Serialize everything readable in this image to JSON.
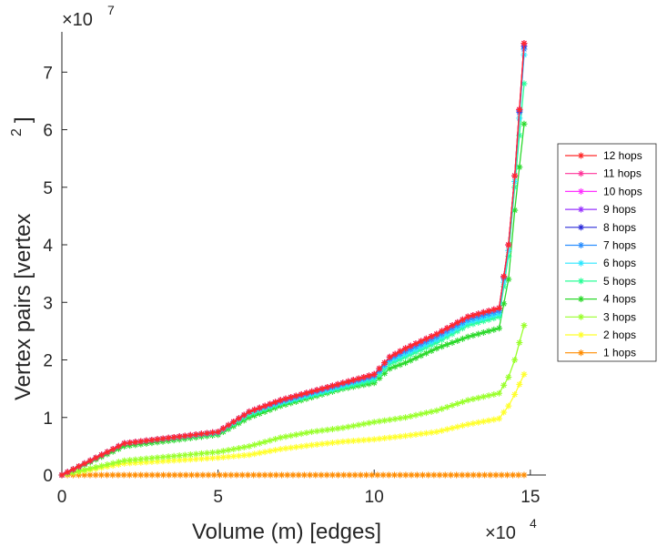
{
  "chart_data": {
    "type": "line",
    "title": "",
    "xlabel": "Volume (m) [edges]",
    "ylabel_main": "Vertex pairs [vertex",
    "ylabel_sup": "2",
    "ylabel_close": "]",
    "x_multiplier": {
      "base": "×10",
      "exp": "4"
    },
    "y_multiplier": {
      "base": "×10",
      "exp": "7"
    },
    "xlim": [
      0,
      15.5
    ],
    "ylim": [
      0,
      7.7
    ],
    "xticks": [
      0,
      5,
      10,
      15
    ],
    "yticks": [
      0,
      1,
      2,
      3,
      4,
      5,
      6,
      7
    ],
    "xticklabels": [
      "0",
      "5",
      "10",
      "15"
    ],
    "yticklabels": [
      "0",
      "1",
      "2",
      "3",
      "4",
      "5",
      "6",
      "7"
    ],
    "legend_location": "right",
    "series": [
      {
        "name": "12 hops",
        "color": "#ff2a2a",
        "points": [
          [
            0,
            0
          ],
          [
            2,
            0.55
          ],
          [
            5,
            0.75
          ],
          [
            6,
            1.1
          ],
          [
            7,
            1.3
          ],
          [
            8,
            1.45
          ],
          [
            9,
            1.6
          ],
          [
            10,
            1.75
          ],
          [
            10.5,
            2.05
          ],
          [
            11,
            2.2
          ],
          [
            12,
            2.45
          ],
          [
            13,
            2.75
          ],
          [
            14,
            2.9
          ],
          [
            14.3,
            4
          ],
          [
            14.5,
            5.2
          ],
          [
            14.8,
            7.5
          ]
        ]
      },
      {
        "name": "11 hops",
        "color": "#ff3399",
        "points": [
          [
            0,
            0
          ],
          [
            2,
            0.55
          ],
          [
            5,
            0.75
          ],
          [
            6,
            1.1
          ],
          [
            7,
            1.3
          ],
          [
            8,
            1.45
          ],
          [
            9,
            1.6
          ],
          [
            10,
            1.75
          ],
          [
            10.5,
            2.05
          ],
          [
            11,
            2.2
          ],
          [
            12,
            2.45
          ],
          [
            13,
            2.75
          ],
          [
            14,
            2.9
          ],
          [
            14.3,
            4
          ],
          [
            14.5,
            5.2
          ],
          [
            14.8,
            7.5
          ]
        ]
      },
      {
        "name": "10 hops",
        "color": "#ff33ff",
        "points": [
          [
            0,
            0
          ],
          [
            2,
            0.55
          ],
          [
            5,
            0.75
          ],
          [
            6,
            1.1
          ],
          [
            7,
            1.3
          ],
          [
            8,
            1.45
          ],
          [
            9,
            1.6
          ],
          [
            10,
            1.75
          ],
          [
            10.5,
            2.05
          ],
          [
            11,
            2.2
          ],
          [
            12,
            2.45
          ],
          [
            13,
            2.75
          ],
          [
            14,
            2.9
          ],
          [
            14.3,
            4
          ],
          [
            14.5,
            5.2
          ],
          [
            14.8,
            7.5
          ]
        ]
      },
      {
        "name": "9 hops",
        "color": "#9933ff",
        "points": [
          [
            0,
            0
          ],
          [
            2,
            0.55
          ],
          [
            5,
            0.75
          ],
          [
            6,
            1.1
          ],
          [
            7,
            1.3
          ],
          [
            8,
            1.45
          ],
          [
            9,
            1.6
          ],
          [
            10,
            1.75
          ],
          [
            10.5,
            2.05
          ],
          [
            11,
            2.2
          ],
          [
            12,
            2.45
          ],
          [
            13,
            2.75
          ],
          [
            14,
            2.9
          ],
          [
            14.3,
            4
          ],
          [
            14.5,
            5.2
          ],
          [
            14.8,
            7.5
          ]
        ]
      },
      {
        "name": "8 hops",
        "color": "#2b2bd9",
        "points": [
          [
            0,
            0
          ],
          [
            2,
            0.55
          ],
          [
            5,
            0.75
          ],
          [
            6,
            1.1
          ],
          [
            7,
            1.3
          ],
          [
            8,
            1.45
          ],
          [
            9,
            1.6
          ],
          [
            10,
            1.75
          ],
          [
            10.5,
            2.05
          ],
          [
            11,
            2.2
          ],
          [
            12,
            2.45
          ],
          [
            13,
            2.75
          ],
          [
            14,
            2.9
          ],
          [
            14.3,
            4
          ],
          [
            14.5,
            5.2
          ],
          [
            14.8,
            7.45
          ]
        ]
      },
      {
        "name": "7 hops",
        "color": "#2b8fff",
        "points": [
          [
            0,
            0
          ],
          [
            2,
            0.55
          ],
          [
            5,
            0.75
          ],
          [
            6,
            1.1
          ],
          [
            7,
            1.28
          ],
          [
            8,
            1.43
          ],
          [
            9,
            1.58
          ],
          [
            10,
            1.72
          ],
          [
            10.5,
            2.02
          ],
          [
            11,
            2.15
          ],
          [
            12,
            2.4
          ],
          [
            13,
            2.7
          ],
          [
            14,
            2.85
          ],
          [
            14.3,
            4
          ],
          [
            14.5,
            5.2
          ],
          [
            14.8,
            7.4
          ]
        ]
      },
      {
        "name": "6 hops",
        "color": "#2be6ff",
        "points": [
          [
            0,
            0
          ],
          [
            2,
            0.55
          ],
          [
            5,
            0.74
          ],
          [
            6,
            1.08
          ],
          [
            7,
            1.26
          ],
          [
            8,
            1.4
          ],
          [
            9,
            1.55
          ],
          [
            10,
            1.7
          ],
          [
            10.5,
            1.98
          ],
          [
            11,
            2.1
          ],
          [
            12,
            2.35
          ],
          [
            13,
            2.65
          ],
          [
            14,
            2.8
          ],
          [
            14.3,
            3.9
          ],
          [
            14.5,
            5.1
          ],
          [
            14.8,
            7.3
          ]
        ]
      },
      {
        "name": "5 hops",
        "color": "#2bff99",
        "points": [
          [
            0,
            0
          ],
          [
            2,
            0.55
          ],
          [
            5,
            0.73
          ],
          [
            6,
            1.05
          ],
          [
            7,
            1.24
          ],
          [
            8,
            1.38
          ],
          [
            9,
            1.52
          ],
          [
            10,
            1.65
          ],
          [
            10.5,
            1.93
          ],
          [
            11,
            2.05
          ],
          [
            12,
            2.3
          ],
          [
            13,
            2.6
          ],
          [
            14,
            2.75
          ],
          [
            14.3,
            3.8
          ],
          [
            14.5,
            5
          ],
          [
            14.8,
            6.8
          ]
        ]
      },
      {
        "name": "4 hops",
        "color": "#2bd92b",
        "points": [
          [
            0,
            0
          ],
          [
            2,
            0.5
          ],
          [
            5,
            0.7
          ],
          [
            6,
            1
          ],
          [
            7,
            1.2
          ],
          [
            8,
            1.35
          ],
          [
            9,
            1.5
          ],
          [
            10,
            1.6
          ],
          [
            10.5,
            1.85
          ],
          [
            11,
            1.95
          ],
          [
            12,
            2.2
          ],
          [
            13,
            2.4
          ],
          [
            14,
            2.55
          ],
          [
            14.3,
            3.4
          ],
          [
            14.5,
            4.6
          ],
          [
            14.8,
            6.1
          ]
        ]
      },
      {
        "name": "3 hops",
        "color": "#99ff2b",
        "points": [
          [
            0,
            0
          ],
          [
            2,
            0.25
          ],
          [
            5,
            0.4
          ],
          [
            6,
            0.5
          ],
          [
            7,
            0.65
          ],
          [
            8,
            0.75
          ],
          [
            9,
            0.82
          ],
          [
            10,
            0.92
          ],
          [
            11,
            1
          ],
          [
            12,
            1.12
          ],
          [
            13,
            1.3
          ],
          [
            14,
            1.42
          ],
          [
            14.3,
            1.7
          ],
          [
            14.5,
            2
          ],
          [
            14.8,
            2.6
          ]
        ]
      },
      {
        "name": "2 hops",
        "color": "#ffff2b",
        "points": [
          [
            0,
            0
          ],
          [
            2,
            0.2
          ],
          [
            5,
            0.3
          ],
          [
            6,
            0.35
          ],
          [
            7,
            0.45
          ],
          [
            8,
            0.52
          ],
          [
            9,
            0.58
          ],
          [
            10,
            0.62
          ],
          [
            11,
            0.68
          ],
          [
            12,
            0.75
          ],
          [
            13,
            0.88
          ],
          [
            14,
            0.98
          ],
          [
            14.3,
            1.2
          ],
          [
            14.5,
            1.4
          ],
          [
            14.8,
            1.75
          ]
        ]
      },
      {
        "name": "1 hops",
        "color": "#ff8c00",
        "points": [
          [
            0,
            0
          ],
          [
            14.8,
            0
          ]
        ]
      }
    ]
  }
}
